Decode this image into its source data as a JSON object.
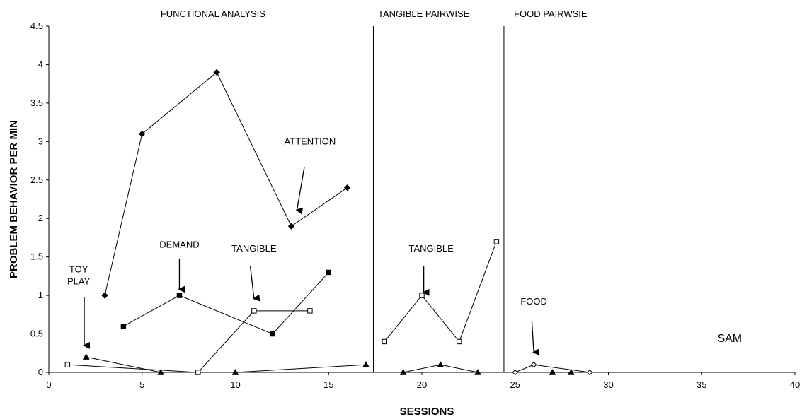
{
  "chart_data": {
    "type": "line",
    "xlabel": "SESSIONS",
    "ylabel": "PROBLEM BEHAVIOR PER MIN",
    "xlim": [
      0,
      40
    ],
    "ylim": [
      0,
      4.5
    ],
    "x_ticks": [
      0,
      5,
      10,
      15,
      20,
      25,
      30,
      35,
      40
    ],
    "y_ticks": [
      0,
      0.5,
      1,
      1.5,
      2,
      2.5,
      3,
      3.5,
      4,
      4.5
    ],
    "grid": false,
    "phase_lines": [
      17.4,
      24.4
    ],
    "phases": [
      {
        "label": "FUNCTIONAL ANALYSIS",
        "x": 8.8
      },
      {
        "label": "TANGIBLE PAIRWISE",
        "x": 20.1
      },
      {
        "label": "FOOD PAIRWSIE",
        "x": 26.9
      }
    ],
    "series": [
      {
        "marker": "diamond-filled",
        "points": [
          [
            3,
            1.0
          ],
          [
            5,
            3.1
          ],
          [
            9,
            3.9
          ],
          [
            13,
            1.9
          ],
          [
            16,
            2.4
          ]
        ]
      },
      {
        "marker": "square-filled",
        "points": [
          [
            4,
            0.6
          ],
          [
            7,
            1.0
          ],
          [
            12,
            0.5
          ],
          [
            15,
            1.3
          ]
        ]
      },
      {
        "marker": "triangle-filled",
        "points": [
          [
            2,
            0.2
          ],
          [
            6,
            0.0
          ],
          [
            10,
            0.0
          ],
          [
            17,
            0.1
          ]
        ]
      },
      {
        "marker": "square-open",
        "points": [
          [
            1,
            0.1
          ],
          [
            8,
            0.0
          ],
          [
            11,
            0.8
          ],
          [
            14,
            0.8
          ]
        ]
      },
      {
        "marker": "square-open",
        "points": [
          [
            18,
            0.4
          ],
          [
            20,
            1.0
          ],
          [
            22,
            0.4
          ],
          [
            24,
            1.7
          ]
        ]
      },
      {
        "marker": "triangle-filled",
        "points": [
          [
            19,
            0.0
          ],
          [
            21,
            0.1
          ],
          [
            23,
            0.0
          ]
        ]
      },
      {
        "marker": "diamond-open",
        "points": [
          [
            25,
            0.0
          ],
          [
            26,
            0.1
          ],
          [
            29,
            0.0
          ]
        ]
      },
      {
        "marker": "triangle-filled",
        "points": [
          [
            27,
            0.0
          ],
          [
            28,
            0.0
          ]
        ]
      }
    ],
    "annotations": [
      {
        "lines": [
          "TOY",
          "PLAY"
        ],
        "x": 1.6,
        "y": 1.3,
        "arrow_from": [
          1.9,
          0.98
        ],
        "arrow_to": [
          1.9,
          0.35
        ]
      },
      {
        "lines": [
          "DEMAND"
        ],
        "x": 7.0,
        "y": 1.62,
        "arrow_from": [
          7.0,
          1.48
        ],
        "arrow_to": [
          7.0,
          1.08
        ]
      },
      {
        "lines": [
          "TANGIBLE"
        ],
        "x": 11.0,
        "y": 1.57,
        "arrow_from": [
          10.8,
          1.38
        ],
        "arrow_to": [
          11.0,
          0.96
        ]
      },
      {
        "lines": [
          "ATTENTION"
        ],
        "x": 14.0,
        "y": 2.96,
        "arrow_from": [
          13.7,
          2.67
        ],
        "arrow_to": [
          13.3,
          2.11
        ]
      },
      {
        "lines": [
          "TANGIBLE"
        ],
        "x": 20.5,
        "y": 1.57,
        "arrow_from": [
          20.1,
          1.38
        ],
        "arrow_to": [
          20.1,
          1.04
        ]
      },
      {
        "lines": [
          "FOOD"
        ],
        "x": 26.0,
        "y": 0.88,
        "arrow_from": [
          25.9,
          0.66
        ],
        "arrow_to": [
          26.0,
          0.26
        ]
      }
    ],
    "label": {
      "text": "SAM",
      "x": 36.5,
      "y": 0.45
    }
  }
}
